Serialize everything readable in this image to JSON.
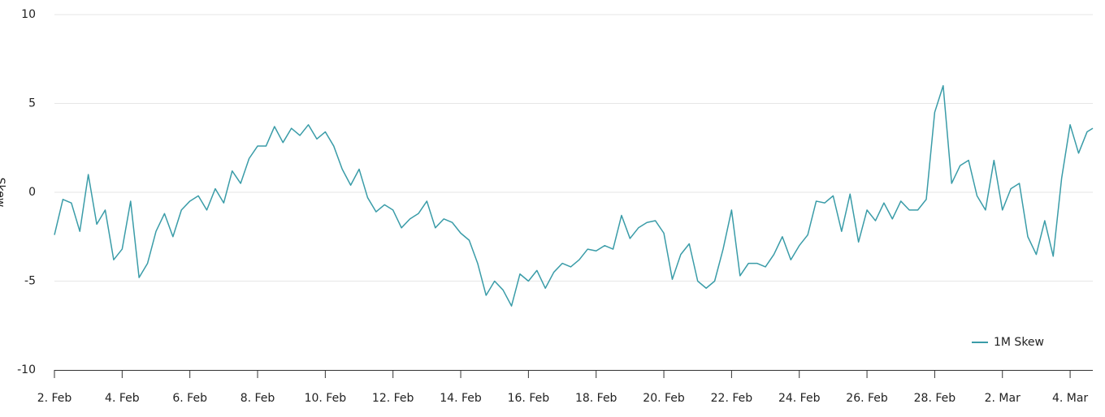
{
  "chart_data": {
    "type": "line",
    "y_label": "Skew",
    "legend": "bottom-right",
    "grid": true,
    "xlim": [
      0,
      30.67
    ],
    "xticks": [
      {
        "value": 0,
        "label": "2. Feb"
      },
      {
        "value": 2,
        "label": "4. Feb"
      },
      {
        "value": 4,
        "label": "6. Feb"
      },
      {
        "value": 6,
        "label": "8. Feb"
      },
      {
        "value": 8,
        "label": "10. Feb"
      },
      {
        "value": 10,
        "label": "12. Feb"
      },
      {
        "value": 12,
        "label": "14. Feb"
      },
      {
        "value": 14,
        "label": "16. Feb"
      },
      {
        "value": 16,
        "label": "18. Feb"
      },
      {
        "value": 18,
        "label": "20. Feb"
      },
      {
        "value": 20,
        "label": "22. Feb"
      },
      {
        "value": 22,
        "label": "24. Feb"
      },
      {
        "value": 24,
        "label": "26. Feb"
      },
      {
        "value": 26,
        "label": "28. Feb"
      },
      {
        "value": 28,
        "label": "2. Mar"
      },
      {
        "value": 30,
        "label": "4. Mar"
      }
    ],
    "ylim": [
      -10,
      10
    ],
    "yticks": [
      -10,
      -5,
      0,
      5,
      10
    ],
    "x": [
      0,
      0.25,
      0.5,
      0.75,
      1,
      1.25,
      1.5,
      1.75,
      2,
      2.25,
      2.5,
      2.75,
      3,
      3.25,
      3.5,
      3.75,
      4,
      4.25,
      4.5,
      4.75,
      5,
      5.25,
      5.5,
      5.75,
      6,
      6.25,
      6.5,
      6.75,
      7,
      7.25,
      7.5,
      7.75,
      8,
      8.25,
      8.5,
      8.75,
      9,
      9.25,
      9.5,
      9.75,
      10,
      10.25,
      10.5,
      10.75,
      11,
      11.25,
      11.5,
      11.75,
      12,
      12.25,
      12.5,
      12.75,
      13,
      13.25,
      13.5,
      13.75,
      14,
      14.25,
      14.5,
      14.75,
      15,
      15.25,
      15.5,
      15.75,
      16,
      16.25,
      16.5,
      16.75,
      17,
      17.25,
      17.5,
      17.75,
      18,
      18.25,
      18.5,
      18.75,
      19,
      19.25,
      19.5,
      19.75,
      20,
      20.25,
      20.5,
      20.75,
      21,
      21.25,
      21.5,
      21.75,
      22,
      22.25,
      22.5,
      22.75,
      23,
      23.25,
      23.5,
      23.75,
      24,
      24.25,
      24.5,
      24.75,
      25,
      25.25,
      25.5,
      25.75,
      26,
      26.25,
      26.5,
      26.75,
      27,
      27.25,
      27.5,
      27.75,
      28,
      28.25,
      28.5,
      28.75,
      29,
      29.25,
      29.5,
      29.75,
      30,
      30.25,
      30.5,
      30.67
    ],
    "series": [
      {
        "name": "1M Skew",
        "color": "#3a9ca8",
        "values": [
          -2.4,
          -0.4,
          -0.6,
          -2.2,
          1.0,
          -1.8,
          -1.0,
          -3.8,
          -3.2,
          -0.5,
          -4.8,
          -4.0,
          -2.2,
          -1.2,
          -2.5,
          -1.0,
          -0.5,
          -0.2,
          -1.0,
          0.2,
          -0.6,
          1.2,
          0.5,
          1.9,
          2.6,
          2.6,
          3.7,
          2.8,
          3.6,
          3.2,
          3.8,
          3.0,
          3.4,
          2.6,
          1.3,
          0.4,
          1.3,
          -0.3,
          -1.1,
          -0.7,
          -1.0,
          -2.0,
          -1.5,
          -1.2,
          -0.5,
          -2.0,
          -1.5,
          -1.7,
          -2.3,
          -2.7,
          -4.0,
          -5.8,
          -5.0,
          -5.5,
          -6.4,
          -4.6,
          -5.0,
          -4.4,
          -5.4,
          -4.5,
          -4.0,
          -4.2,
          -3.8,
          -3.2,
          -3.3,
          -3.0,
          -3.2,
          -1.3,
          -2.6,
          -2.0,
          -1.7,
          -1.6,
          -2.3,
          -4.9,
          -3.5,
          -2.9,
          -5.0,
          -5.4,
          -5.0,
          -3.2,
          -1.0,
          -4.7,
          -4.0,
          -4.0,
          -4.2,
          -3.5,
          -2.5,
          -3.8,
          -3.0,
          -2.4,
          -0.5,
          -0.6,
          -0.2,
          -2.2,
          -0.1,
          -2.8,
          -1.0,
          -1.6,
          -0.6,
          -1.5,
          -0.5,
          -1.0,
          -1.0,
          -0.4,
          4.5,
          6.0,
          0.5,
          1.5,
          1.8,
          -0.2,
          -1.0,
          1.8,
          -1.0,
          0.2,
          0.5,
          -2.5,
          -3.5,
          -1.6,
          -3.6,
          0.8,
          3.8,
          2.2,
          3.4,
          3.6
        ]
      }
    ]
  }
}
